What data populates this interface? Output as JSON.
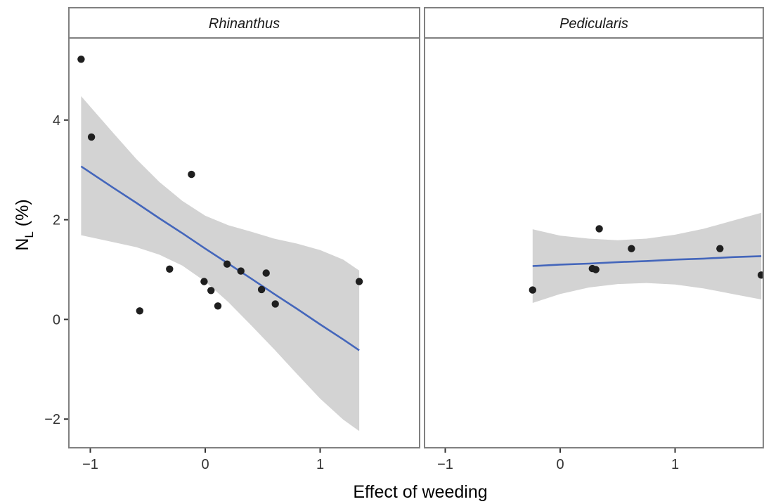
{
  "chart_data": {
    "type": "scatter",
    "xlabel": "Effect of weeding",
    "ylabel_main": "N",
    "ylabel_sub": "L",
    "ylabel_suffix": " (%)",
    "x_ticks": [
      "−1",
      "0",
      "1"
    ],
    "y_ticks": [
      "−2",
      "0",
      "2",
      "4"
    ],
    "xlim": [
      -1.2,
      1.8
    ],
    "ylim": [
      -2.6,
      5.4
    ],
    "colors": {
      "points": "#1f1f1f",
      "line": "#4466bb",
      "band": "#d3d3d3",
      "strip": "#ffffff",
      "border": "#808080"
    },
    "panels": [
      {
        "label": "Rhinanthus",
        "points": [
          {
            "x": -1.08,
            "y": 5.22
          },
          {
            "x": -0.99,
            "y": 3.66
          },
          {
            "x": -0.57,
            "y": 0.17
          },
          {
            "x": -0.31,
            "y": 1.01
          },
          {
            "x": -0.12,
            "y": 2.91
          },
          {
            "x": -0.01,
            "y": 0.76
          },
          {
            "x": 0.05,
            "y": 0.58
          },
          {
            "x": 0.11,
            "y": 0.27
          },
          {
            "x": 0.19,
            "y": 1.11
          },
          {
            "x": 0.31,
            "y": 0.97
          },
          {
            "x": 0.49,
            "y": 0.6
          },
          {
            "x": 0.53,
            "y": 0.93
          },
          {
            "x": 0.61,
            "y": 0.31
          },
          {
            "x": 1.34,
            "y": 0.76
          }
        ],
        "fit": {
          "x": [
            -1.08,
            -0.8,
            -0.6,
            -0.4,
            -0.2,
            0.0,
            0.2,
            0.4,
            0.6,
            0.8,
            1.0,
            1.2,
            1.34
          ],
          "y": [
            3.07,
            2.64,
            2.34,
            2.03,
            1.73,
            1.42,
            1.12,
            0.82,
            0.51,
            0.21,
            -0.1,
            -0.4,
            -0.62
          ],
          "lower": [
            1.69,
            1.55,
            1.45,
            1.3,
            1.08,
            0.76,
            0.35,
            -0.12,
            -0.6,
            -1.1,
            -1.59,
            -2.01,
            -2.24
          ],
          "upper": [
            4.48,
            3.74,
            3.22,
            2.76,
            2.38,
            2.08,
            1.89,
            1.76,
            1.62,
            1.52,
            1.39,
            1.2,
            0.98
          ]
        }
      },
      {
        "label": "Pedicularis",
        "points": [
          {
            "x": -0.24,
            "y": 0.59
          },
          {
            "x": 0.28,
            "y": 1.02
          },
          {
            "x": 0.31,
            "y": 1.0
          },
          {
            "x": 0.34,
            "y": 1.82
          },
          {
            "x": 0.62,
            "y": 1.42
          },
          {
            "x": 1.39,
            "y": 1.42
          },
          {
            "x": 1.75,
            "y": 0.89
          }
        ],
        "fit": {
          "x": [
            -0.24,
            0.0,
            0.25,
            0.5,
            0.75,
            1.0,
            1.25,
            1.5,
            1.75
          ],
          "y": [
            1.07,
            1.1,
            1.12,
            1.15,
            1.17,
            1.2,
            1.22,
            1.25,
            1.27
          ],
          "lower": [
            0.33,
            0.51,
            0.64,
            0.71,
            0.73,
            0.7,
            0.62,
            0.51,
            0.4
          ],
          "upper": [
            1.81,
            1.68,
            1.62,
            1.59,
            1.62,
            1.7,
            1.82,
            1.98,
            2.14
          ]
        }
      }
    ]
  }
}
